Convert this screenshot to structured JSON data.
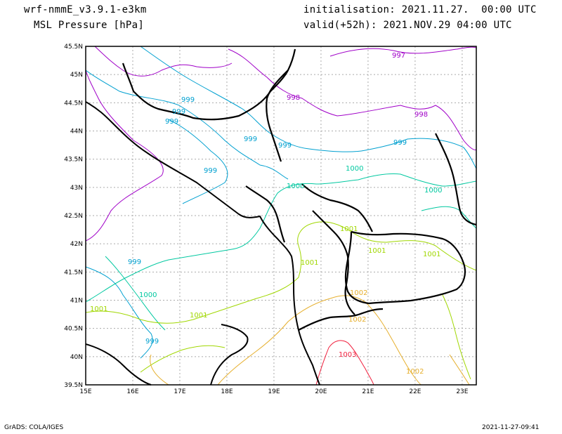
{
  "header": {
    "model": "wrf-nmmE_v3.9.1-e3km",
    "field": "MSL Pressure [hPa]",
    "init": "initialisation: 2021.11.27.  00:00 UTC",
    "valid": "valid(+52h): 2021.NOV.29 04:00 UTC"
  },
  "axes": {
    "lon_labels": [
      "15E",
      "16E",
      "17E",
      "18E",
      "19E",
      "20E",
      "21E",
      "22E",
      "23E"
    ],
    "lat_labels": [
      "45.5N",
      "45N",
      "44.5N",
      "44N",
      "43.5N",
      "43N",
      "42.5N",
      "42N",
      "41.5N",
      "41N",
      "40.5N",
      "40N",
      "39.5N"
    ],
    "lon_range": [
      15,
      23.3
    ],
    "lat_range": [
      39.5,
      45.5
    ],
    "grid": "dotted"
  },
  "contours": {
    "levels": [
      997,
      998,
      999,
      1000,
      1001,
      1002,
      1003
    ],
    "colors": {
      "997": "#a000c8",
      "998": "#a000c8",
      "999": "#00a0d0",
      "1000": "#00c8a0",
      "1001": "#a0d700",
      "1002": "#e6af2d",
      "1003": "#f01e3c"
    },
    "labels": [
      {
        "text": "997",
        "level": "997"
      },
      {
        "text": "998",
        "level": "998"
      },
      {
        "text": "998",
        "level": "998"
      },
      {
        "text": "999",
        "level": "999"
      },
      {
        "text": "999",
        "level": "999"
      },
      {
        "text": "999",
        "level": "999"
      },
      {
        "text": "999",
        "level": "999"
      },
      {
        "text": "999",
        "level": "999"
      },
      {
        "text": "999",
        "level": "999"
      },
      {
        "text": "999",
        "level": "999"
      },
      {
        "text": "999",
        "level": "999"
      },
      {
        "text": "999",
        "level": "999"
      },
      {
        "text": "1000",
        "level": "1000"
      },
      {
        "text": "1000",
        "level": "1000"
      },
      {
        "text": "1000",
        "level": "1000"
      },
      {
        "text": "1000",
        "level": "1000"
      },
      {
        "text": "1001",
        "level": "1001"
      },
      {
        "text": "1001",
        "level": "1001"
      },
      {
        "text": "1001",
        "level": "1001"
      },
      {
        "text": "1001",
        "level": "1001"
      },
      {
        "text": "1001",
        "level": "1001"
      },
      {
        "text": "1002",
        "level": "1002"
      },
      {
        "text": "1002",
        "level": "1002"
      },
      {
        "text": "1002",
        "level": "1002"
      },
      {
        "text": "1003",
        "level": "1003"
      }
    ]
  },
  "footer": {
    "left": "GrADS: COLA/IGES",
    "right": "2021-11-27-09:41"
  }
}
